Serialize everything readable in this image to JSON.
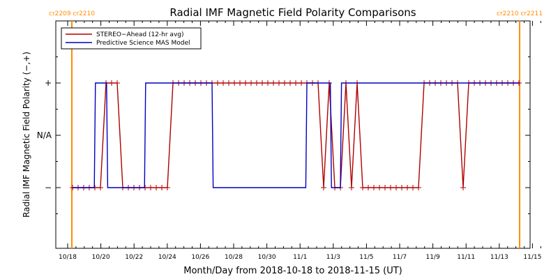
{
  "chart_data": {
    "type": "line",
    "title": "Radial IMF Magnetic Field Polarity Comparisons",
    "xlabel": "Month/Day from 2018-10-18 to 2018-11-15 (UT)",
    "ylabel": "Radial IMF Magnetic Field Polarity (−,+)",
    "xlim_days": [
      0,
      28.6
    ],
    "x_ticks": [
      {
        "day": 0,
        "label": "10/18"
      },
      {
        "day": 2,
        "label": "10/20"
      },
      {
        "day": 4,
        "label": "10/22"
      },
      {
        "day": 6,
        "label": "10/24"
      },
      {
        "day": 8,
        "label": "10/26"
      },
      {
        "day": 10,
        "label": "10/28"
      },
      {
        "day": 12,
        "label": "10/30"
      },
      {
        "day": 14,
        "label": "11/1"
      },
      {
        "day": 16,
        "label": "11/3"
      },
      {
        "day": 18,
        "label": "11/5"
      },
      {
        "day": 20,
        "label": "11/7"
      },
      {
        "day": 22,
        "label": "11/9"
      },
      {
        "day": 24,
        "label": "11/11"
      },
      {
        "day": 26,
        "label": "11/13"
      },
      {
        "day": 28,
        "label": "11/15"
      }
    ],
    "ylim": [
      -2,
      2
    ],
    "y_ticks": [
      {
        "value": 1,
        "label": "+"
      },
      {
        "value": 0,
        "label": "N/A"
      },
      {
        "value": -1,
        "label": "−"
      }
    ],
    "carrington_markers": [
      {
        "day": 1.5,
        "label": "cr2209 cr2210"
      },
      {
        "day": 29.9,
        "label": "cr2210 cr2211"
      }
    ],
    "legend_position": "top-left",
    "series": [
      {
        "name": "STEREO−Ahead (12-hr avg)",
        "color": "#b00000",
        "markers": "plus",
        "points": [
          [
            1.5,
            -1
          ],
          [
            2.0,
            -1
          ],
          [
            2.5,
            -1
          ],
          [
            3.0,
            -1
          ],
          [
            3.5,
            -1
          ],
          [
            4.0,
            -1
          ],
          [
            4.5,
            1
          ],
          [
            5.0,
            1
          ],
          [
            5.5,
            1
          ],
          [
            6.0,
            -1
          ],
          [
            6.5,
            -1
          ],
          [
            7.0,
            -1
          ],
          [
            7.5,
            -1
          ],
          [
            8.0,
            -1
          ],
          [
            8.5,
            -1
          ],
          [
            9.0,
            -1
          ],
          [
            9.5,
            -1
          ],
          [
            10.0,
            -1
          ],
          [
            10.5,
            1
          ],
          [
            11.0,
            1
          ],
          [
            11.5,
            1
          ],
          [
            12.0,
            1
          ],
          [
            12.5,
            1
          ],
          [
            13.0,
            1
          ],
          [
            13.5,
            1
          ],
          [
            14.0,
            1
          ],
          [
            14.5,
            1
          ],
          [
            15.0,
            1
          ],
          [
            15.5,
            1
          ],
          [
            16.0,
            1
          ],
          [
            16.5,
            1
          ],
          [
            17.0,
            1
          ],
          [
            17.5,
            1
          ],
          [
            18.0,
            1
          ],
          [
            18.5,
            1
          ],
          [
            19.0,
            1
          ],
          [
            19.5,
            1
          ],
          [
            20.0,
            1
          ],
          [
            20.5,
            1
          ],
          [
            21.0,
            1
          ],
          [
            21.5,
            1
          ],
          [
            22.0,
            1
          ],
          [
            22.5,
            1
          ],
          [
            23.0,
            1
          ],
          [
            23.5,
            1
          ],
          [
            24.0,
            -1
          ],
          [
            24.5,
            1
          ],
          [
            25.0,
            -1
          ],
          [
            25.5,
            -1
          ],
          [
            26.0,
            1
          ],
          [
            26.5,
            -1
          ],
          [
            27.0,
            1
          ],
          [
            27.5,
            -1
          ],
          [
            28.0,
            -1
          ],
          [
            28.5,
            -1
          ],
          [
            29.0,
            -1
          ],
          [
            29.5,
            -1
          ],
          [
            30.0,
            -1
          ],
          [
            30.5,
            -1
          ],
          [
            31.0,
            -1
          ],
          [
            31.5,
            -1
          ],
          [
            32.0,
            -1
          ],
          [
            32.5,
            -1
          ],
          [
            33.0,
            1
          ],
          [
            33.5,
            1
          ],
          [
            34.0,
            1
          ],
          [
            34.5,
            1
          ],
          [
            35.0,
            1
          ],
          [
            35.5,
            1
          ],
          [
            36.0,
            1
          ],
          [
            36.5,
            -1
          ],
          [
            37.0,
            1
          ],
          [
            37.5,
            1
          ],
          [
            38.0,
            1
          ],
          [
            38.5,
            1
          ],
          [
            39.0,
            1
          ],
          [
            39.5,
            1
          ],
          [
            40.0,
            1
          ],
          [
            40.5,
            1
          ],
          [
            41.0,
            1
          ],
          [
            41.5,
            1
          ]
        ]
      },
      {
        "name": "Predictive Science MAS Model",
        "color": "#0000c0",
        "markers": "none",
        "points": [
          [
            1.5,
            -1
          ],
          [
            3.45,
            -1
          ],
          [
            3.55,
            1
          ],
          [
            4.55,
            1
          ],
          [
            4.65,
            -1
          ],
          [
            7.95,
            -1
          ],
          [
            8.05,
            1
          ],
          [
            14.0,
            1
          ],
          [
            14.1,
            -1
          ],
          [
            22.4,
            -1
          ],
          [
            22.5,
            1
          ],
          [
            24.6,
            1
          ],
          [
            24.7,
            -1
          ],
          [
            25.5,
            -1
          ],
          [
            25.6,
            1
          ],
          [
            29.9,
            1
          ]
        ]
      }
    ]
  }
}
